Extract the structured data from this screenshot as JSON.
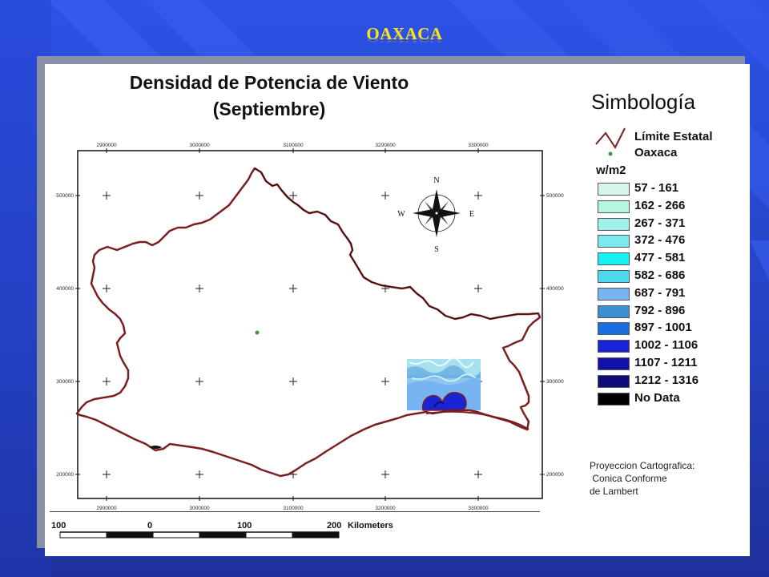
{
  "slide": {
    "title": "OAXACA",
    "title_color": "#f2e61e"
  },
  "map": {
    "title_line1": "Densidad de Potencia de Viento",
    "title_line2": "(Septiembre)",
    "grid": {
      "top_labels": [
        "2900000",
        "3000000",
        "3100000",
        "3200000",
        "3300000"
      ],
      "bottom_labels": [
        "2900000",
        "3000000",
        "3100000",
        "3200000",
        "3300000"
      ],
      "left_labels": [
        "500000",
        "400000",
        "300000",
        "200000"
      ],
      "right_labels": [
        "500000",
        "400000",
        "300000",
        "200000"
      ]
    },
    "compass": {
      "north": "N",
      "south": "S",
      "east": "E",
      "west": "W"
    },
    "boundary_color": "#7a1f1f",
    "point_color": "#3a9a3a"
  },
  "legend": {
    "title": "Simbología",
    "boundary_label": "Límite Estatal",
    "point_label": "Oaxaca",
    "unit": "w/m2",
    "classes": [
      {
        "range": "57 - 161",
        "color": "#d6f7e8"
      },
      {
        "range": "162 - 266",
        "color": "#b6f5e0"
      },
      {
        "range": "267 - 371",
        "color": "#9ef1e6"
      },
      {
        "range": "372 - 476",
        "color": "#7be9ee"
      },
      {
        "range": "477 - 581",
        "color": "#16f2f2"
      },
      {
        "range": "582 - 686",
        "color": "#4fd9ee"
      },
      {
        "range": "687 - 791",
        "color": "#79b4f2"
      },
      {
        "range": "792 - 896",
        "color": "#3e8ed2"
      },
      {
        "range": "897 - 1001",
        "color": "#1a6ee2"
      },
      {
        "range": "1002 - 1106",
        "color": "#1a24d6"
      },
      {
        "range": "1107 - 1211",
        "color": "#1212aa"
      },
      {
        "range": "1212 - 1316",
        "color": "#0c0c78"
      },
      {
        "range": "No Data",
        "color": "#000000"
      }
    ],
    "projection_line1": "Proyeccion Cartografica:",
    "projection_line2": " Conica Conforme",
    "projection_line3": "de Lambert"
  },
  "scalebar": {
    "labels": [
      "100",
      "0",
      "100",
      "200"
    ],
    "unit": "Kilometers"
  }
}
